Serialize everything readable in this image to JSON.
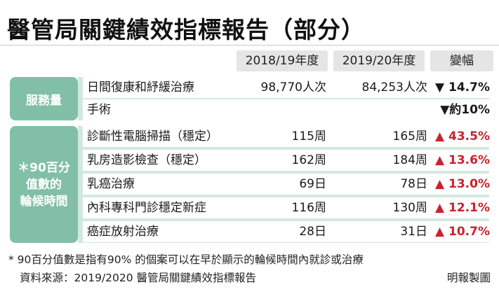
{
  "title": "醫管局關鍵績效指標報告（部分）",
  "headers": {
    "col_2018": "2018/19年度",
    "col_2019": "2019/20年度",
    "col_change": "變幅"
  },
  "groups": {
    "service": "服務量",
    "wait_lines": [
      "＊90百分",
      "值數的",
      "輪候時間"
    ]
  },
  "rows": [
    {
      "label": "日間復康和紓緩治療",
      "y2018": "98,770人次",
      "y2019": "84,253人次",
      "change": "▼ 14.7%",
      "direction": "down"
    },
    {
      "label": "手術",
      "y2018": "",
      "y2019": "",
      "change": "▼約10%",
      "direction": "down"
    },
    {
      "label": "診斷性電腦掃描（穩定）",
      "y2018": "115周",
      "y2019": "165周",
      "change": "▲ 43.5%",
      "direction": "up"
    },
    {
      "label": "乳房造影檢查（穩定）",
      "y2018": "162周",
      "y2019": "184周",
      "change": "▲ 13.6%",
      "direction": "up"
    },
    {
      "label": "乳癌治療",
      "y2018": "69日",
      "y2019": "78日",
      "change": "▲ 13.0%",
      "direction": "up"
    },
    {
      "label": "內科專科門診穩定新症",
      "y2018": "116周",
      "y2019": "130周",
      "change": "▲ 12.1%",
      "direction": "up"
    },
    {
      "label": "癌症放射治療",
      "y2018": "28日",
      "y2019": "31日",
      "change": "▲ 10.7%",
      "direction": "up"
    }
  ],
  "footnote": "* 90百分值數是指有90% 的個案可以在早於顯示的輪候時間內就診或治療",
  "source": "資料來源：2019/2020 醫管局關鍵績效指標報告",
  "credit": "明報製圖",
  "colors": {
    "group_fill": "#82bfa7",
    "band_fill": "#d3e9df",
    "header_fill": "#e5e5e5",
    "increase": "#c8232c",
    "decrease": "#1a1a1a"
  }
}
